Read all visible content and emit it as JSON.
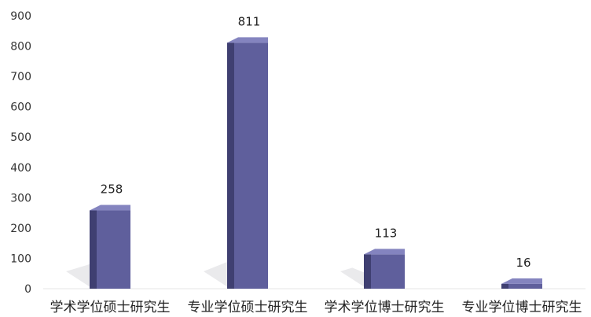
{
  "chart_data": {
    "type": "bar",
    "categories": [
      "学术学位硕士研究生",
      "专业学位硕士研究生",
      "学术学位博士研究生",
      "专业学位博士研究生"
    ],
    "values": [
      258,
      811,
      113,
      16
    ],
    "title": "",
    "xlabel": "",
    "ylabel": "",
    "ylim": [
      0,
      900
    ],
    "yticks": [
      0,
      100,
      200,
      300,
      400,
      500,
      600,
      700,
      800,
      900
    ],
    "grid": false,
    "legend": "none",
    "colors": {
      "bar_front": "#5f5f9c",
      "bar_side": "#3a3a6a",
      "bar_top": "#8484bf",
      "shadow": "#d9d9dc"
    }
  }
}
